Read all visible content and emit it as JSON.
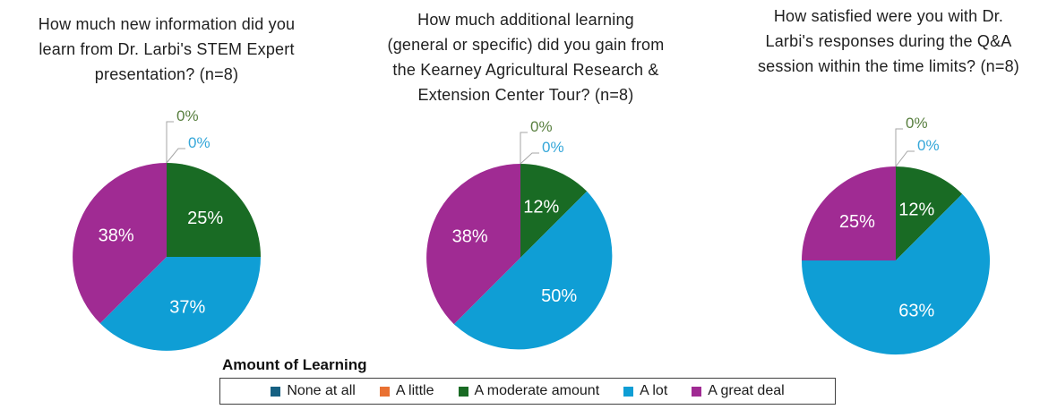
{
  "legend": {
    "title": "Amount of Learning",
    "position": "bottom",
    "items": [
      {
        "label": "None at all",
        "color": "#156082"
      },
      {
        "label": "A little",
        "color": "#E97132"
      },
      {
        "label": "A moderate amount",
        "color": "#196B24"
      },
      {
        "label": "A lot",
        "color": "#0F9ED5"
      },
      {
        "label": "A great deal",
        "color": "#A02B93"
      }
    ]
  },
  "styles": {
    "slice_label_color": "#FFFFFF",
    "zero_label_colors": [
      "#587F3F",
      "#35A7D9"
    ],
    "leader_line_color": "#A6A6A6"
  },
  "chart_data": [
    {
      "type": "pie",
      "title": "How much new information did you learn from Dr. Larbi's STEM Expert presentation? (n=8)",
      "title_lines": [
        "How much new information did you",
        "learn from Dr. Larbi's STEM Expert",
        "presentation? (n=8)"
      ],
      "n": 8,
      "categories": [
        "None at all",
        "A little",
        "A moderate amount",
        "A lot",
        "A great deal"
      ],
      "values_pct": [
        0,
        0,
        25,
        37,
        38
      ],
      "labels": [
        "0%",
        "0%",
        "25%",
        "37%",
        "38%"
      ],
      "fractions": [
        0,
        0,
        0.25,
        0.375,
        0.375
      ]
    },
    {
      "type": "pie",
      "title": "How much additional learning (general or specific) did you gain from the Kearney Agricultural Research & Extension Center Tour? (n=8)",
      "title_lines": [
        "How much additional learning",
        "(general or specific) did you gain from",
        "the Kearney Agricultural Research &",
        "Extension Center Tour? (n=8)"
      ],
      "n": 8,
      "categories": [
        "None at all",
        "A little",
        "A moderate amount",
        "A lot",
        "A great deal"
      ],
      "values_pct": [
        0,
        0,
        12,
        50,
        38
      ],
      "labels": [
        "0%",
        "0%",
        "12%",
        "50%",
        "38%"
      ],
      "fractions": [
        0,
        0,
        0.125,
        0.5,
        0.375
      ]
    },
    {
      "type": "pie",
      "title": "How satisfied were you with Dr. Larbi's responses during the Q&A session within the time limits? (n=8)",
      "title_lines": [
        "How satisfied were you with Dr.",
        "Larbi's responses during the Q&A",
        "session within the time limits? (n=8)"
      ],
      "n": 8,
      "categories": [
        "None at all",
        "A little",
        "A moderate amount",
        "A lot",
        "A great deal"
      ],
      "values_pct": [
        0,
        0,
        12,
        63,
        25
      ],
      "labels": [
        "0%",
        "0%",
        "12%",
        "63%",
        "25%"
      ],
      "fractions": [
        0,
        0,
        0.125,
        0.625,
        0.25
      ]
    }
  ]
}
